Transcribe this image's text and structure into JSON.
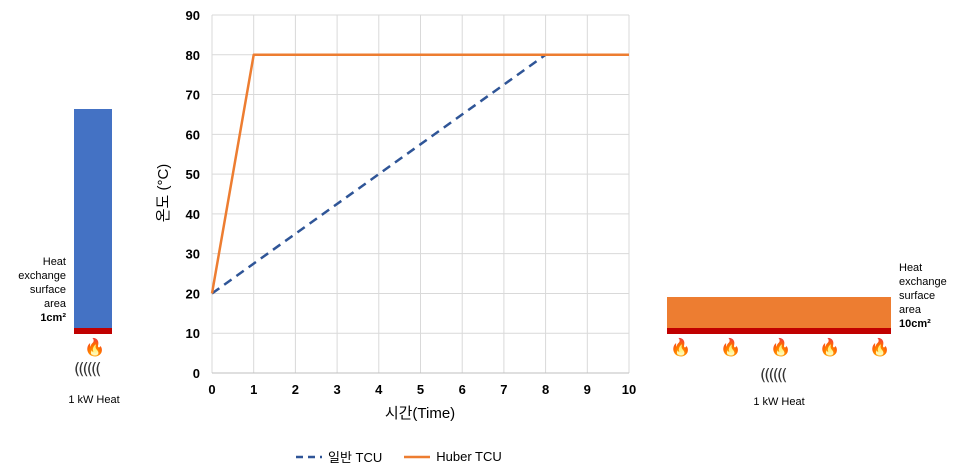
{
  "left_panel": {
    "label_lines": [
      "Heat",
      "exchange",
      "surface",
      "area"
    ],
    "area_value": "1cm²",
    "caption": "1 kW Heat",
    "bar_color": "#4472C4",
    "plate_color": "#C00000",
    "flame_icon": "fire-icon",
    "coil_icon": "heating-coil-icon",
    "coil_glyph": "((((((",
    "flame_count": 1
  },
  "right_panel": {
    "label_lines": [
      "Heat",
      "exchange",
      "surface",
      "area"
    ],
    "area_value": "10cm²",
    "caption": "1 kW Heat",
    "bar_color": "#ED7D31",
    "plate_color": "#C00000",
    "flame_icon": "fire-icon",
    "coil_icon": "heating-coil-icon",
    "coil_glyph": "((((((",
    "flame_count": 5
  },
  "chart_data": {
    "type": "line",
    "xlabel": "시간(Time)",
    "ylabel": "온도 (°C)",
    "xlim": [
      0,
      10
    ],
    "ylim": [
      0,
      90
    ],
    "x_ticks": [
      0,
      1,
      2,
      3,
      4,
      5,
      6,
      7,
      8,
      9,
      10
    ],
    "y_ticks": [
      0,
      10,
      20,
      30,
      40,
      50,
      60,
      70,
      80,
      90
    ],
    "grid": true,
    "legend_position": "bottom",
    "series": [
      {
        "name": "일반 TCU",
        "color": "#2F5597",
        "style": "dashed",
        "points": [
          [
            0,
            20
          ],
          [
            8,
            80
          ],
          [
            10,
            80
          ]
        ]
      },
      {
        "name": "Huber TCU",
        "color": "#ED7D31",
        "style": "solid",
        "points": [
          [
            0,
            20
          ],
          [
            1,
            80
          ],
          [
            10,
            80
          ]
        ]
      }
    ]
  }
}
